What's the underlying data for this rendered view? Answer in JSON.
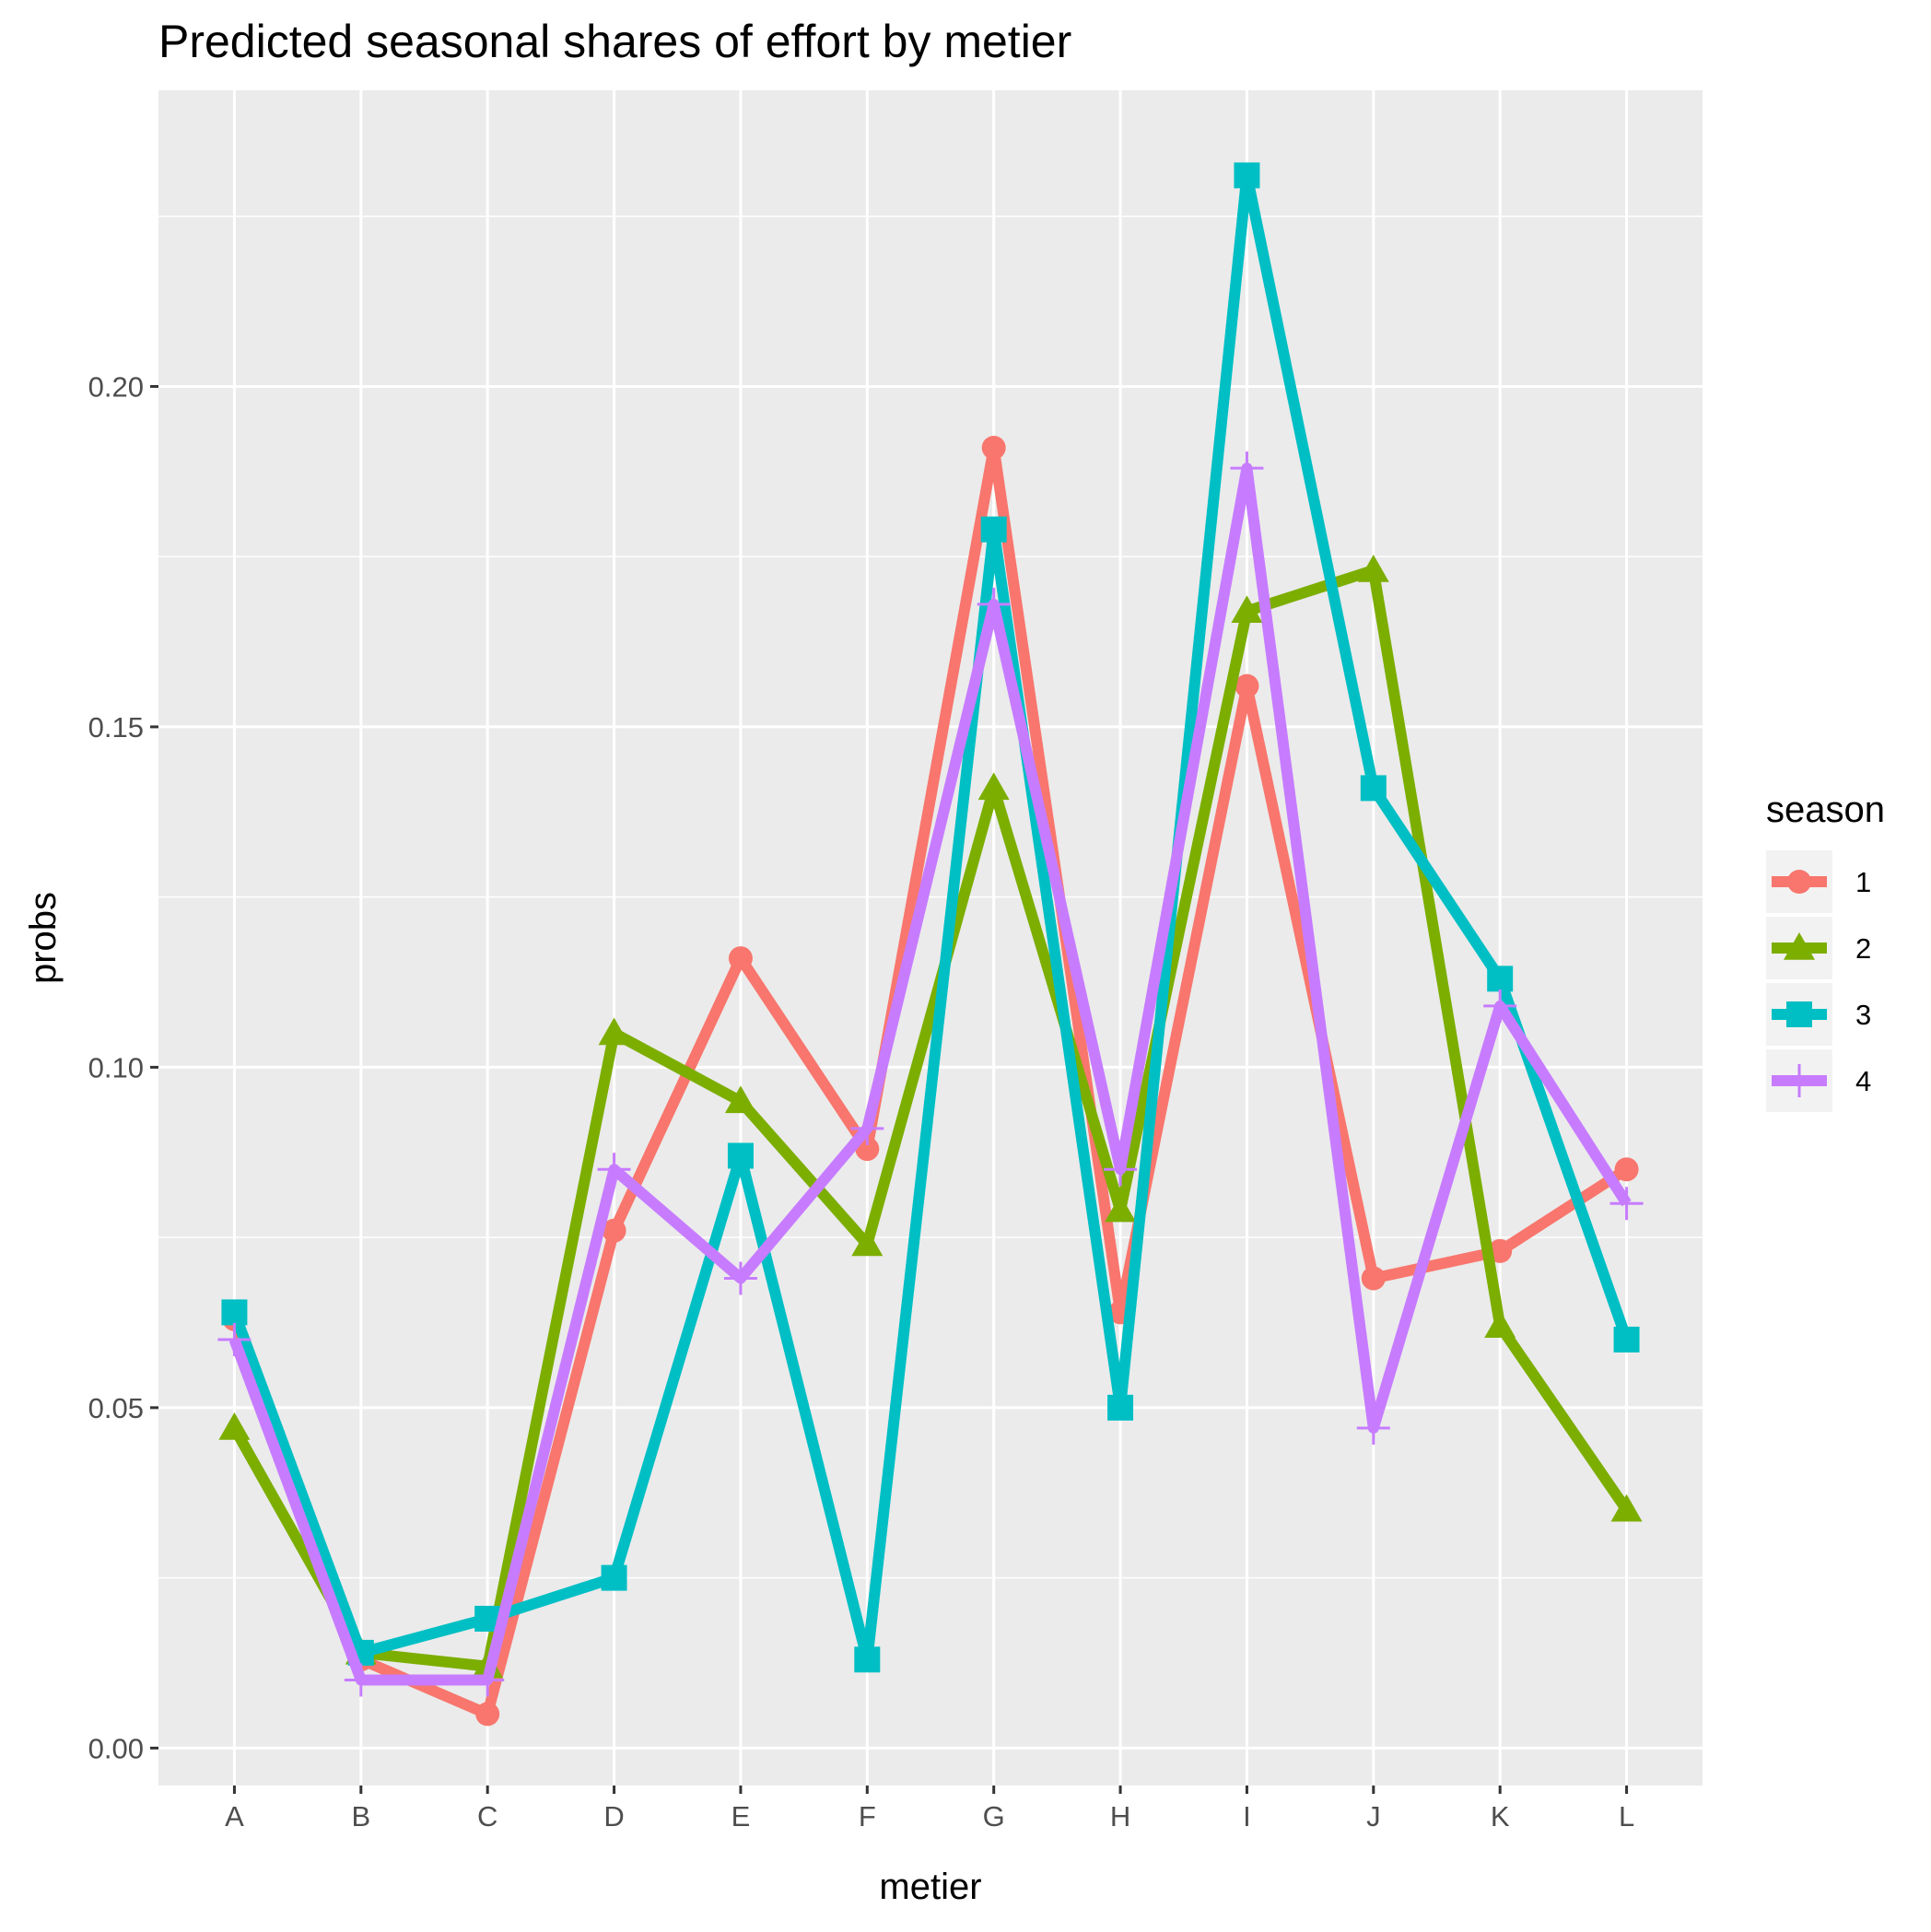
{
  "chart_data": {
    "type": "line",
    "title": "Predicted seasonal shares of effort by metier",
    "xlabel": "metier",
    "ylabel": "probs",
    "categories": [
      "A",
      "B",
      "C",
      "D",
      "E",
      "F",
      "G",
      "H",
      "I",
      "J",
      "K",
      "L"
    ],
    "yticks": [
      0.0,
      0.05,
      0.1,
      0.15,
      0.2
    ],
    "ytick_labels": [
      "0.00",
      "0.05",
      "0.10",
      "0.15",
      "0.20"
    ],
    "ylim": [
      -0.0055,
      0.2435
    ],
    "grid": true,
    "panel_background": "#ebebeb",
    "legend": {
      "title": "season",
      "position": "right"
    },
    "series": [
      {
        "name": "1",
        "color": "#f8766d",
        "marker": "circle",
        "values": [
          0.063,
          0.013,
          0.005,
          0.076,
          0.116,
          0.088,
          0.191,
          0.064,
          0.156,
          0.069,
          0.073,
          0.085
        ]
      },
      {
        "name": "2",
        "color": "#7cae00",
        "marker": "triangle",
        "values": [
          0.047,
          0.014,
          0.012,
          0.105,
          0.095,
          0.074,
          0.141,
          0.079,
          0.167,
          0.173,
          0.062,
          0.035
        ]
      },
      {
        "name": "3",
        "color": "#00bfc4",
        "marker": "square",
        "values": [
          0.064,
          0.014,
          0.019,
          0.025,
          0.087,
          0.013,
          0.179,
          0.05,
          0.231,
          0.141,
          0.113,
          0.06
        ]
      },
      {
        "name": "4",
        "color": "#c77cff",
        "marker": "plus",
        "values": [
          0.06,
          0.01,
          0.01,
          0.085,
          0.069,
          0.091,
          0.168,
          0.085,
          0.188,
          0.047,
          0.109,
          0.08
        ]
      }
    ]
  }
}
